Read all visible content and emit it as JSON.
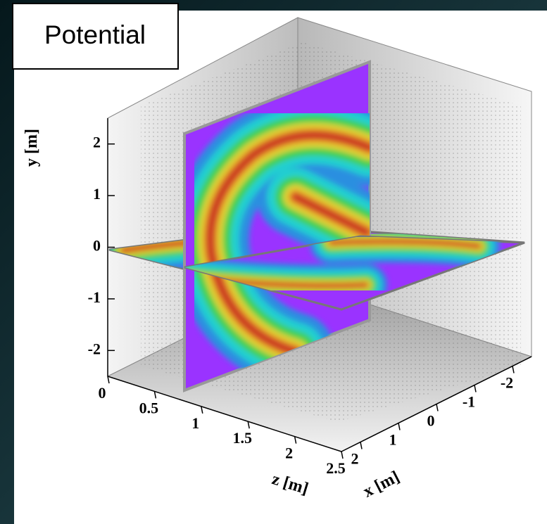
{
  "chart_data": {
    "type": "surface3d",
    "title": "Potential",
    "xlabel": "x [m]",
    "ylabel": "y [m]",
    "zlabel": "z [m]",
    "xlim": [
      2.5,
      -2.5
    ],
    "ylim": [
      -2.5,
      2.5
    ],
    "zlim": [
      0,
      2.5
    ],
    "xticks": [
      2,
      1,
      0,
      -1,
      -2
    ],
    "yticks": [
      2,
      1,
      0,
      -1,
      -2
    ],
    "zticks": [
      0,
      0.5,
      1,
      1.5,
      2,
      2.5
    ]
  }
}
